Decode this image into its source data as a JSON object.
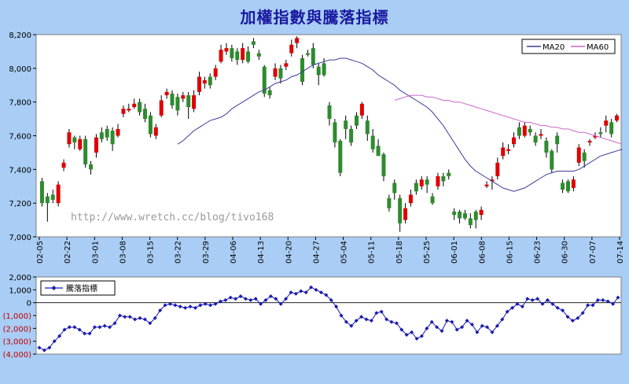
{
  "title": "加權指數與騰落指標",
  "watermark": "http://www.wretch.cc/blog/tivo168",
  "colors": {
    "up": "#e00000",
    "down": "#2e8b2e",
    "ma20": "#3b3b9a",
    "ma60": "#cc66cc",
    "breadth": "#1a1ab0",
    "negative_label": "#c00000",
    "background": "#a9cdf4",
    "plot": "#ffffff"
  },
  "chart_data": [
    {
      "type": "candlestick",
      "title": "加權指數與騰落指標",
      "ylim": [
        7000,
        8200
      ],
      "y_ticks": [
        "7,000",
        "7,200",
        "7,400",
        "7,600",
        "7,800",
        "8,000",
        "8,200"
      ],
      "x_ticks": [
        "02-05",
        "02-22",
        "03-01",
        "03-08",
        "03-15",
        "03-22",
        "03-29",
        "04-06",
        "04-13",
        "04-20",
        "04-27",
        "05-04",
        "05-11",
        "05-18",
        "05-25",
        "06-01",
        "06-08",
        "06-15",
        "06-23",
        "06-30",
        "07-07",
        "07-14"
      ],
      "grid": false,
      "legend": {
        "position": "top-right",
        "entries": [
          "MA20",
          "MA60"
        ]
      },
      "candles": [
        [
          7330,
          7200,
          7350,
          7180
        ],
        [
          7240,
          7200,
          7260,
          7090
        ],
        [
          7250,
          7220,
          7280,
          7200
        ],
        [
          7200,
          7310,
          7330,
          7180
        ],
        [
          7410,
          7440,
          7460,
          7390
        ],
        [
          7550,
          7620,
          7640,
          7530
        ],
        [
          7590,
          7560,
          7600,
          7520
        ],
        [
          7520,
          7580,
          7600,
          7510
        ],
        [
          7580,
          7430,
          7600,
          7410
        ],
        [
          7430,
          7400,
          7450,
          7370
        ],
        [
          7500,
          7590,
          7610,
          7470
        ],
        [
          7620,
          7580,
          7650,
          7560
        ],
        [
          7640,
          7590,
          7660,
          7570
        ],
        [
          7630,
          7550,
          7650,
          7510
        ],
        [
          7600,
          7640,
          7670,
          7590
        ],
        [
          7730,
          7760,
          7780,
          7710
        ],
        [
          7750,
          7760,
          7790,
          7740
        ],
        [
          7770,
          7790,
          7820,
          7760
        ],
        [
          7800,
          7740,
          7820,
          7720
        ],
        [
          7760,
          7700,
          7790,
          7680
        ],
        [
          7720,
          7610,
          7740,
          7590
        ],
        [
          7600,
          7650,
          7670,
          7580
        ],
        [
          7720,
          7810,
          7840,
          7710
        ],
        [
          7840,
          7860,
          7880,
          7820
        ],
        [
          7850,
          7780,
          7870,
          7760
        ],
        [
          7830,
          7750,
          7850,
          7720
        ],
        [
          7820,
          7840,
          7860,
          7800
        ],
        [
          7840,
          7770,
          7860,
          7700
        ],
        [
          7760,
          7840,
          7870,
          7740
        ],
        [
          7860,
          7950,
          7980,
          7840
        ],
        [
          7910,
          7930,
          7950,
          7880
        ],
        [
          7950,
          7900,
          7970,
          7880
        ],
        [
          7950,
          8000,
          8020,
          7930
        ],
        [
          8040,
          8110,
          8140,
          8030
        ],
        [
          8100,
          8120,
          8150,
          8080
        ],
        [
          8120,
          8060,
          8140,
          8040
        ],
        [
          8100,
          8050,
          8120,
          8020
        ],
        [
          8050,
          8120,
          8150,
          8030
        ],
        [
          8100,
          8040,
          8130,
          8030
        ],
        [
          8160,
          8140,
          8180,
          8120
        ],
        [
          8090,
          8070,
          8110,
          8050
        ],
        [
          8010,
          7850,
          8020,
          7830
        ],
        [
          7870,
          7840,
          7890,
          7820
        ],
        [
          7950,
          8000,
          8030,
          7930
        ],
        [
          8000,
          7940,
          8020,
          7910
        ],
        [
          8010,
          8030,
          8050,
          7990
        ],
        [
          8090,
          8140,
          8170,
          8070
        ],
        [
          8150,
          8180,
          8190,
          8120
        ],
        [
          8060,
          7920,
          8080,
          7900
        ],
        [
          8090,
          8080,
          8110,
          8070
        ],
        [
          8120,
          8020,
          8150,
          8000
        ],
        [
          8010,
          7960,
          8030,
          7900
        ],
        [
          8030,
          7960,
          8060,
          7950
        ],
        [
          7780,
          7700,
          7800,
          7660
        ],
        [
          7680,
          7560,
          7700,
          7530
        ],
        [
          7570,
          7380,
          7580,
          7360
        ],
        [
          7690,
          7640,
          7720,
          7580
        ],
        [
          7640,
          7560,
          7660,
          7540
        ],
        [
          7720,
          7660,
          7740,
          7640
        ],
        [
          7720,
          7790,
          7800,
          7700
        ],
        [
          7690,
          7610,
          7720,
          7570
        ],
        [
          7600,
          7520,
          7640,
          7500
        ],
        [
          7540,
          7480,
          7580,
          7480
        ],
        [
          7490,
          7360,
          7500,
          7330
        ],
        [
          7230,
          7170,
          7250,
          7150
        ],
        [
          7320,
          7260,
          7340,
          7220
        ],
        [
          7230,
          7080,
          7250,
          7030
        ],
        [
          7100,
          7170,
          7200,
          7080
        ],
        [
          7200,
          7250,
          7280,
          7180
        ],
        [
          7320,
          7270,
          7340,
          7250
        ],
        [
          7300,
          7340,
          7360,
          7280
        ],
        [
          7340,
          7310,
          7360,
          7260
        ],
        [
          7240,
          7200,
          7260,
          7190
        ],
        [
          7300,
          7360,
          7380,
          7280
        ],
        [
          7360,
          7330,
          7380,
          7300
        ],
        [
          7380,
          7360,
          7400,
          7340
        ],
        [
          7150,
          7130,
          7170,
          7100
        ],
        [
          7150,
          7110,
          7160,
          7080
        ],
        [
          7140,
          7110,
          7160,
          7100
        ],
        [
          7110,
          7070,
          7140,
          7050
        ],
        [
          7150,
          7100,
          7160,
          7050
        ],
        [
          7130,
          7160,
          7180,
          7100
        ],
        [
          7300,
          7310,
          7330,
          7290
        ],
        [
          7330,
          7340,
          7360,
          7280
        ],
        [
          7360,
          7440,
          7470,
          7340
        ],
        [
          7480,
          7530,
          7560,
          7460
        ],
        [
          7510,
          7520,
          7550,
          7490
        ],
        [
          7550,
          7590,
          7620,
          7530
        ],
        [
          7650,
          7600,
          7680,
          7580
        ],
        [
          7600,
          7660,
          7680,
          7590
        ],
        [
          7640,
          7620,
          7660,
          7600
        ],
        [
          7600,
          7560,
          7620,
          7540
        ],
        [
          7600,
          7610,
          7640,
          7580
        ],
        [
          7570,
          7500,
          7590,
          7470
        ],
        [
          7510,
          7400,
          7520,
          7380
        ],
        [
          7600,
          7550,
          7620,
          7500
        ],
        [
          7320,
          7280,
          7340,
          7260
        ],
        [
          7330,
          7270,
          7340,
          7260
        ],
        [
          7290,
          7340,
          7360,
          7270
        ],
        [
          7440,
          7530,
          7550,
          7420
        ],
        [
          7500,
          7450,
          7520,
          7410
        ],
        [
          7560,
          7570,
          7580,
          7540
        ],
        [
          7590,
          7600,
          7620,
          7580
        ],
        [
          7620,
          7610,
          7650,
          7590
        ],
        [
          7660,
          7690,
          7720,
          7620
        ],
        [
          7680,
          7610,
          7700,
          7590
        ],
        [
          7690,
          7720,
          7730,
          7680
        ]
      ],
      "ma20": [
        7550,
        7570,
        7600,
        7630,
        7650,
        7670,
        7690,
        7700,
        7710,
        7730,
        7760,
        7780,
        7800,
        7820,
        7840,
        7860,
        7870,
        7890,
        7910,
        7920,
        7930,
        7950,
        7960,
        7980,
        8000,
        8020,
        8030,
        8040,
        8050,
        8050,
        8060,
        8060,
        8050,
        8040,
        8030,
        8010,
        7990,
        7960,
        7940,
        7920,
        7900,
        7870,
        7850,
        7830,
        7810,
        7790,
        7770,
        7740,
        7700,
        7660,
        7610,
        7560,
        7510,
        7460,
        7420,
        7390,
        7370,
        7350,
        7330,
        7310,
        7290,
        7280,
        7270,
        7280,
        7290,
        7310,
        7330,
        7350,
        7370,
        7380,
        7390,
        7390,
        7390,
        7390,
        7400,
        7420,
        7440,
        7460,
        7480,
        7490,
        7500,
        7510,
        7520
      ],
      "ma20_start_index": 25,
      "ma60": [
        7810,
        7820,
        7830,
        7840,
        7840,
        7840,
        7830,
        7830,
        7820,
        7810,
        7810,
        7800,
        7800,
        7790,
        7780,
        7770,
        7760,
        7750,
        7740,
        7730,
        7720,
        7710,
        7700,
        7690,
        7680,
        7680,
        7670,
        7660,
        7660,
        7650,
        7650,
        7640,
        7640,
        7630,
        7620,
        7620,
        7610,
        7600,
        7590,
        7580,
        7570,
        7560,
        7550
      ],
      "ma60_start_index": 65
    },
    {
      "type": "line",
      "ylim": [
        -4000,
        2000
      ],
      "y_ticks": [
        "(4,000)",
        "(3,000)",
        "(2,000)",
        "(1,000)",
        "0",
        "1,000",
        "2,000"
      ],
      "grid": false,
      "legend": {
        "position": "top-left",
        "entries": [
          "騰落指標"
        ]
      },
      "series": [
        {
          "name": "騰落指標",
          "values": [
            -3500,
            -3700,
            -3500,
            -3000,
            -2600,
            -2100,
            -1900,
            -1900,
            -2100,
            -2400,
            -2400,
            -1900,
            -1900,
            -1800,
            -1900,
            -1600,
            -1000,
            -1100,
            -1100,
            -1300,
            -1200,
            -1300,
            -1600,
            -1200,
            -600,
            -200,
            -100,
            -200,
            -300,
            -400,
            -300,
            -400,
            -200,
            -100,
            -200,
            -100,
            100,
            200,
            400,
            300,
            500,
            300,
            200,
            300,
            -100,
            200,
            500,
            300,
            -100,
            300,
            800,
            700,
            900,
            800,
            1200,
            1000,
            800,
            600,
            200,
            -300,
            -1000,
            -1500,
            -1800,
            -1400,
            -1100,
            -1300,
            -1400,
            -800,
            -700,
            -1300,
            -1500,
            -1600,
            -2100,
            -2500,
            -2300,
            -2800,
            -2600,
            -2000,
            -1500,
            -1900,
            -2200,
            -1400,
            -1500,
            -2100,
            -1900,
            -1400,
            -1700,
            -2300,
            -1800,
            -1900,
            -2300,
            -1800,
            -1300,
            -700,
            -400,
            -100,
            -300,
            300,
            200,
            300,
            -100,
            200,
            -100,
            -400,
            -600,
            -1100,
            -1400,
            -1200,
            -800,
            -200,
            -200,
            200,
            200,
            100,
            -100,
            400
          ]
        }
      ]
    }
  ]
}
